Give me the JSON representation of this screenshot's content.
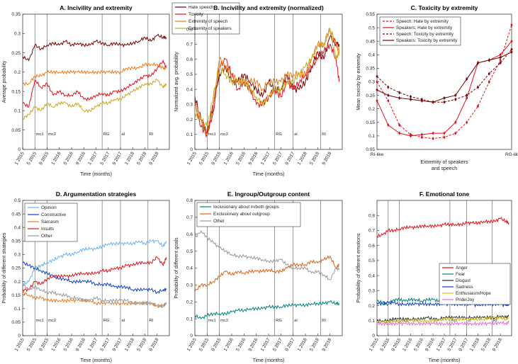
{
  "x_tick_labels": [
    "1  2015",
    "5  2015",
    "9  2015",
    "1  2016",
    "5  2016",
    "9  2016",
    "1  2017",
    "5  2017",
    "9  2017",
    "1  2018",
    "5  2018",
    "9  2018"
  ],
  "events": [
    {
      "label": "mc1",
      "x": 4
    },
    {
      "label": "mc2",
      "x": 8
    },
    {
      "label": "RG",
      "x": 26
    },
    {
      "label": "al",
      "x": 32
    },
    {
      "label": "RI",
      "x": 41
    }
  ],
  "chart_data": [
    {
      "id": "A",
      "type": "line",
      "title": "A. Incivility and extremity",
      "xlabel": "Time (months)",
      "ylabel": "Average probability",
      "xlim": [
        0,
        48
      ],
      "ylim": [
        0,
        0.35
      ],
      "yticks": [
        "0",
        "0.05",
        "0.1",
        "0.15",
        "0.2",
        "0.25",
        "0.3",
        "0.35"
      ],
      "x": [
        0,
        2,
        4,
        6,
        8,
        10,
        12,
        14,
        16,
        18,
        20,
        22,
        24,
        26,
        28,
        30,
        32,
        34,
        36,
        38,
        40,
        42,
        44,
        46,
        47
      ],
      "legend_position": "outside-top-right",
      "series": [
        {
          "name": "Hate speech",
          "color": "#7a0000",
          "values": [
            0.24,
            0.23,
            0.27,
            0.26,
            0.27,
            0.275,
            0.27,
            0.28,
            0.27,
            0.275,
            0.27,
            0.27,
            0.28,
            0.275,
            0.27,
            0.275,
            0.27,
            0.27,
            0.275,
            0.28,
            0.29,
            0.28,
            0.295,
            0.29,
            0.29
          ]
        },
        {
          "name": "Toxicity",
          "color": "#e0101a",
          "values": [
            0.12,
            0.11,
            0.18,
            0.16,
            0.17,
            0.14,
            0.15,
            0.14,
            0.14,
            0.15,
            0.13,
            0.13,
            0.14,
            0.145,
            0.14,
            0.15,
            0.15,
            0.16,
            0.17,
            0.18,
            0.19,
            0.19,
            0.21,
            0.23,
            0.21
          ]
        },
        {
          "name": "Extremity of speech",
          "color": "#f07818",
          "values": [
            0.17,
            0.17,
            0.19,
            0.19,
            0.2,
            0.2,
            0.2,
            0.2,
            0.2,
            0.2,
            0.2,
            0.2,
            0.2,
            0.2,
            0.2,
            0.2,
            0.2,
            0.21,
            0.21,
            0.21,
            0.22,
            0.22,
            0.22,
            0.21,
            0.21
          ]
        },
        {
          "name": "Extremity of speakers",
          "color": "#c8a818",
          "values": [
            0.08,
            0.09,
            0.11,
            0.1,
            0.12,
            0.11,
            0.12,
            0.12,
            0.11,
            0.12,
            0.1,
            0.1,
            0.11,
            0.12,
            0.12,
            0.13,
            0.13,
            0.14,
            0.15,
            0.16,
            0.17,
            0.17,
            0.18,
            0.16,
            0.17
          ]
        }
      ]
    },
    {
      "id": "B",
      "type": "line",
      "title": "B. Incivility and extremity (normalized)",
      "xlabel": "Time (months)",
      "ylabel": "Normalized avg. probability",
      "xlim": [
        0,
        48
      ],
      "ylim": [
        0,
        0.9
      ],
      "yticks": [
        "0",
        "0.1",
        "0.2",
        "0.3",
        "0.4",
        "0.5",
        "0.6",
        "0.7",
        "0.8"
      ],
      "x": [
        0,
        2,
        4,
        6,
        8,
        10,
        12,
        14,
        16,
        18,
        20,
        22,
        24,
        26,
        28,
        30,
        32,
        34,
        36,
        38,
        40,
        42,
        44,
        46,
        47
      ],
      "series": [
        {
          "name": "Hate speech",
          "color": "#7a0000",
          "values": [
            0.35,
            0.2,
            0.1,
            0.3,
            0.5,
            0.55,
            0.45,
            0.45,
            0.5,
            0.45,
            0.4,
            0.35,
            0.45,
            0.4,
            0.4,
            0.5,
            0.4,
            0.4,
            0.45,
            0.55,
            0.65,
            0.6,
            0.75,
            0.7,
            0.7
          ]
        },
        {
          "name": "Toxicity",
          "color": "#e0101a",
          "values": [
            0.3,
            0.15,
            0.1,
            0.25,
            0.55,
            0.6,
            0.5,
            0.4,
            0.45,
            0.4,
            0.3,
            0.3,
            0.35,
            0.4,
            0.35,
            0.45,
            0.4,
            0.45,
            0.5,
            0.55,
            0.6,
            0.65,
            0.7,
            0.6,
            0.45
          ]
        },
        {
          "name": "Extremity of speech",
          "color": "#f07818",
          "values": [
            0.3,
            0.2,
            0.1,
            0.3,
            0.6,
            0.55,
            0.5,
            0.45,
            0.45,
            0.45,
            0.45,
            0.4,
            0.45,
            0.45,
            0.45,
            0.5,
            0.5,
            0.5,
            0.5,
            0.6,
            0.7,
            0.7,
            0.8,
            0.7,
            0.65
          ]
        },
        {
          "name": "Extremity of speakers",
          "color": "#c8a818",
          "values": [
            0.25,
            0.2,
            0.15,
            0.35,
            0.55,
            0.5,
            0.45,
            0.45,
            0.45,
            0.4,
            0.35,
            0.3,
            0.35,
            0.4,
            0.4,
            0.45,
            0.45,
            0.5,
            0.55,
            0.6,
            0.7,
            0.7,
            0.8,
            0.6,
            0.65
          ]
        }
      ]
    },
    {
      "id": "C",
      "type": "line",
      "title": "C. Toxicity by extremity",
      "xlabel": "Extremity of speakers and speech",
      "ylabel": "Mean toxicity by extremity",
      "ylim": [
        0.05,
        0.55
      ],
      "yticks": [
        "0.05",
        "0.1",
        "0.15",
        "0.2",
        "0.25",
        "0.3",
        "0.35",
        "0.4",
        "0.45",
        "0.5",
        "0.55"
      ],
      "xtick_labels": [
        "RI-like",
        "RG-lik"
      ],
      "x": [
        0,
        1,
        2,
        3,
        4,
        5,
        6,
        7,
        8,
        9,
        10,
        11,
        12
      ],
      "legend_position": "top-left",
      "series": [
        {
          "name": "Speech: Hate by extremity",
          "color": "#e0101a",
          "dashed": true,
          "values": [
            0.3,
            0.23,
            0.14,
            0.105,
            0.095,
            0.09,
            0.095,
            0.11,
            0.15,
            0.21,
            0.3,
            0.38,
            0.51
          ]
        },
        {
          "name": "Speakers: Hate by extremity",
          "color": "#e0101a",
          "dashed": false,
          "values": [
            0.23,
            0.14,
            0.11,
            0.1,
            0.105,
            0.11,
            0.11,
            0.15,
            0.24,
            0.37,
            0.38,
            0.4,
            0.45
          ]
        },
        {
          "name": "Speech: Toxicity by extremity",
          "color": "#7a0000",
          "dashed": true,
          "values": [
            0.32,
            0.28,
            0.26,
            0.245,
            0.235,
            0.225,
            0.225,
            0.235,
            0.25,
            0.28,
            0.33,
            0.37,
            0.42
          ]
        },
        {
          "name": "Speakers: Toxicity by extremity",
          "color": "#7a0000",
          "dashed": false,
          "values": [
            0.27,
            0.25,
            0.24,
            0.235,
            0.23,
            0.225,
            0.24,
            0.25,
            0.31,
            0.37,
            0.38,
            0.39,
            0.41
          ]
        }
      ]
    },
    {
      "id": "D",
      "type": "line",
      "title": "D. Argumentation strategies",
      "xlabel": "Time (months)",
      "ylabel": "Probability of different strategies",
      "xlim": [
        0,
        48
      ],
      "ylim": [
        0,
        0.5
      ],
      "yticks": [
        "0",
        "0.05",
        "0.1",
        "0.15",
        "0.2",
        "0.25",
        "0.3",
        "0.35",
        "0.4",
        "0.45",
        "0.5"
      ],
      "x": [
        0,
        2,
        4,
        6,
        8,
        10,
        12,
        14,
        16,
        18,
        20,
        22,
        24,
        26,
        28,
        30,
        32,
        34,
        36,
        38,
        40,
        42,
        44,
        46,
        47
      ],
      "legend_position": "top-left",
      "series": [
        {
          "name": "Opinion",
          "color": "#6ab0f0",
          "values": [
            0.19,
            0.2,
            0.25,
            0.26,
            0.27,
            0.28,
            0.29,
            0.3,
            0.3,
            0.31,
            0.32,
            0.32,
            0.32,
            0.33,
            0.34,
            0.34,
            0.34,
            0.34,
            0.34,
            0.35,
            0.34,
            0.35,
            0.35,
            0.33,
            0.35
          ]
        },
        {
          "name": "Constructive",
          "color": "#1040c8",
          "values": [
            0.27,
            0.26,
            0.25,
            0.24,
            0.23,
            0.22,
            0.21,
            0.21,
            0.2,
            0.2,
            0.2,
            0.2,
            0.19,
            0.19,
            0.19,
            0.18,
            0.18,
            0.18,
            0.17,
            0.17,
            0.17,
            0.17,
            0.16,
            0.17,
            0.17
          ]
        },
        {
          "name": "Sarcasm",
          "color": "#f07818",
          "values": [
            0.16,
            0.15,
            0.14,
            0.14,
            0.13,
            0.13,
            0.13,
            0.13,
            0.13,
            0.13,
            0.13,
            0.13,
            0.12,
            0.12,
            0.12,
            0.12,
            0.12,
            0.12,
            0.12,
            0.12,
            0.12,
            0.12,
            0.11,
            0.11,
            0.12
          ]
        },
        {
          "name": "Insults",
          "color": "#e0101a",
          "values": [
            0.17,
            0.17,
            0.2,
            0.19,
            0.21,
            0.22,
            0.22,
            0.22,
            0.22,
            0.23,
            0.23,
            0.23,
            0.23,
            0.24,
            0.24,
            0.25,
            0.25,
            0.26,
            0.26,
            0.27,
            0.27,
            0.27,
            0.29,
            0.26,
            0.29
          ]
        },
        {
          "name": "Other",
          "color": "#999999",
          "values": [
            0.19,
            0.17,
            0.18,
            0.17,
            0.16,
            0.16,
            0.15,
            0.15,
            0.14,
            0.14,
            0.13,
            0.13,
            0.14,
            0.13,
            0.13,
            0.13,
            0.13,
            0.13,
            0.12,
            0.12,
            0.12,
            0.12,
            0.11,
            0.11,
            0.12
          ]
        }
      ]
    },
    {
      "id": "E",
      "type": "line",
      "title": "E. Ingroup/Outgroup content",
      "xlabel": "Time (months)",
      "ylabel": "Probability of different goals",
      "xlim": [
        0,
        48
      ],
      "ylim": [
        0,
        0.8
      ],
      "yticks": [
        "0",
        "0.1",
        "0.2",
        "0.3",
        "0.4",
        "0.5",
        "0.6",
        "0.7",
        "0.8"
      ],
      "x": [
        0,
        2,
        4,
        6,
        8,
        10,
        12,
        14,
        16,
        18,
        20,
        22,
        24,
        26,
        28,
        30,
        32,
        34,
        36,
        38,
        40,
        42,
        44,
        46,
        47
      ],
      "legend_position": "top-left",
      "series": [
        {
          "name": "Inclusionary about in/both groups",
          "color": "#008080",
          "values": [
            0.12,
            0.1,
            0.12,
            0.13,
            0.13,
            0.13,
            0.14,
            0.15,
            0.15,
            0.16,
            0.16,
            0.16,
            0.17,
            0.17,
            0.17,
            0.18,
            0.18,
            0.18,
            0.18,
            0.19,
            0.19,
            0.19,
            0.2,
            0.19,
            0.19
          ]
        },
        {
          "name": "Exclusionary about outgroup",
          "color": "#e06010",
          "values": [
            0.26,
            0.3,
            0.3,
            0.32,
            0.35,
            0.38,
            0.36,
            0.38,
            0.37,
            0.38,
            0.38,
            0.38,
            0.39,
            0.38,
            0.38,
            0.4,
            0.42,
            0.42,
            0.42,
            0.44,
            0.43,
            0.45,
            0.47,
            0.4,
            0.42
          ]
        },
        {
          "name": "Other",
          "color": "#999999",
          "values": [
            0.58,
            0.62,
            0.58,
            0.55,
            0.52,
            0.5,
            0.48,
            0.47,
            0.47,
            0.46,
            0.46,
            0.45,
            0.44,
            0.44,
            0.45,
            0.42,
            0.4,
            0.4,
            0.4,
            0.37,
            0.38,
            0.36,
            0.33,
            0.4,
            0.39
          ]
        }
      ]
    },
    {
      "id": "F",
      "type": "line",
      "title": "F. Emotional tone",
      "xlabel": "Time (months)",
      "ylabel": "Probability of different emotions",
      "xlim": [
        0,
        48
      ],
      "ylim": [
        0,
        0.9
      ],
      "yticks": [
        "0",
        "0.1",
        "0.2",
        "0.3",
        "0.4",
        "0.5",
        "0.6",
        "0.7",
        "0.8"
      ],
      "x": [
        0,
        2,
        4,
        6,
        8,
        10,
        12,
        14,
        16,
        18,
        20,
        22,
        24,
        26,
        28,
        30,
        32,
        34,
        36,
        38,
        40,
        42,
        44,
        46,
        47
      ],
      "legend_position": "right",
      "series": [
        {
          "name": "Anger",
          "color": "#e0101a",
          "values": [
            0.66,
            0.67,
            0.7,
            0.7,
            0.71,
            0.72,
            0.72,
            0.72,
            0.73,
            0.73,
            0.73,
            0.73,
            0.74,
            0.74,
            0.74,
            0.74,
            0.75,
            0.75,
            0.75,
            0.76,
            0.76,
            0.76,
            0.78,
            0.76,
            0.75
          ]
        },
        {
          "name": "Fear",
          "color": "#008080",
          "values": [
            0.23,
            0.22,
            0.21,
            0.24,
            0.24,
            0.23,
            0.24,
            0.24,
            0.23,
            0.24,
            0.24,
            0.23,
            0.24,
            0.24,
            0.24,
            0.24,
            0.24,
            0.24,
            0.23,
            0.24,
            0.24,
            0.24,
            0.24,
            0.23,
            0.24
          ]
        },
        {
          "name": "Disgust",
          "color": "#303030",
          "values": [
            0.1,
            0.1,
            0.1,
            0.11,
            0.11,
            0.11,
            0.11,
            0.11,
            0.11,
            0.12,
            0.11,
            0.11,
            0.12,
            0.12,
            0.12,
            0.12,
            0.12,
            0.12,
            0.12,
            0.12,
            0.12,
            0.12,
            0.13,
            0.12,
            0.13
          ]
        },
        {
          "name": "Sadness",
          "color": "#1040c8",
          "values": [
            0.22,
            0.21,
            0.22,
            0.22,
            0.21,
            0.21,
            0.21,
            0.21,
            0.21,
            0.21,
            0.21,
            0.21,
            0.21,
            0.21,
            0.21,
            0.21,
            0.21,
            0.21,
            0.2,
            0.21,
            0.21,
            0.21,
            0.21,
            0.2,
            0.21
          ]
        },
        {
          "name": "Enthusiasm/Hope",
          "color": "#d8c020",
          "values": [
            0.09,
            0.09,
            0.09,
            0.1,
            0.1,
            0.1,
            0.1,
            0.1,
            0.1,
            0.1,
            0.1,
            0.1,
            0.11,
            0.11,
            0.11,
            0.11,
            0.11,
            0.11,
            0.11,
            0.11,
            0.12,
            0.12,
            0.12,
            0.11,
            0.12
          ]
        },
        {
          "name": "Pride/Joy",
          "color": "#e070c8",
          "values": [
            0.08,
            0.08,
            0.08,
            0.08,
            0.08,
            0.08,
            0.08,
            0.08,
            0.08,
            0.08,
            0.08,
            0.08,
            0.08,
            0.08,
            0.08,
            0.08,
            0.08,
            0.08,
            0.08,
            0.08,
            0.08,
            0.08,
            0.09,
            0.08,
            0.09
          ]
        }
      ]
    }
  ]
}
